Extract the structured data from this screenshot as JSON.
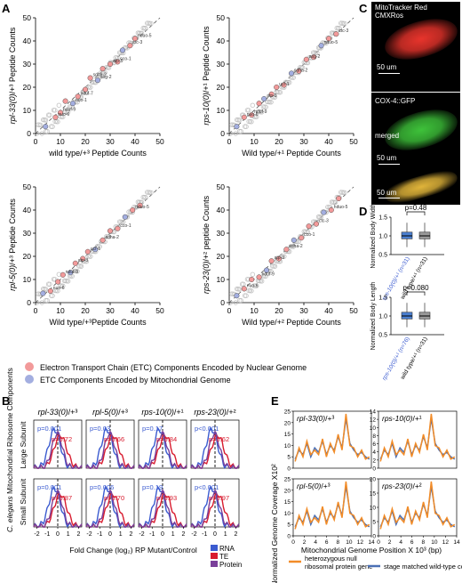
{
  "panelA": {
    "letter": "A",
    "plots": [
      {
        "ylabel_it": "rpl-33(0)",
        "ylabel_sup": "/+³",
        "ylabel_rest": " Peptide Counts",
        "xlabel": "wild type/+³ Peptide Counts",
        "points": [
          [
            4,
            3
          ],
          [
            8,
            7
          ],
          [
            10,
            9
          ],
          [
            12,
            14
          ],
          [
            15,
            13
          ],
          [
            17,
            16
          ],
          [
            20,
            19
          ],
          [
            22,
            24
          ],
          [
            25,
            23
          ],
          [
            27,
            28
          ],
          [
            30,
            30
          ],
          [
            33,
            31
          ],
          [
            35,
            36
          ],
          [
            38,
            38
          ],
          [
            40,
            41
          ]
        ],
        "labels": [
          "nuo-6",
          "nduf-9",
          "nuo-1",
          "nduf-7",
          "sdha-2",
          "asg-2",
          "atp-5",
          "cco-1",
          "ctc-3",
          "nduo-5"
        ]
      },
      {
        "ylabel_it": "rps-10(0)",
        "ylabel_sup": "/+¹",
        "ylabel_rest": " Peptide Counts",
        "xlabel": "Wild type/+¹ Peptide Counts",
        "points": [
          [
            3,
            3
          ],
          [
            6,
            7
          ],
          [
            9,
            8
          ],
          [
            12,
            13
          ],
          [
            14,
            15
          ],
          [
            17,
            17
          ],
          [
            19,
            20
          ],
          [
            22,
            21
          ],
          [
            25,
            26
          ],
          [
            28,
            27
          ],
          [
            31,
            32
          ],
          [
            34,
            33
          ],
          [
            37,
            38
          ],
          [
            40,
            41
          ],
          [
            43,
            43
          ]
        ],
        "labels": [
          "nuo-6",
          "nduf-9",
          "atp-3",
          "ucr-1",
          "sdha-2",
          "asg-2",
          "nduo-5",
          "ctc-3"
        ]
      },
      {
        "ylabel_it": "rpl-5(0)",
        "ylabel_sup": "/+³",
        "ylabel_rest": " Peptide Counts",
        "xlabel": "Wild type/+³Peptide Counts",
        "points": [
          [
            3,
            4
          ],
          [
            6,
            5
          ],
          [
            9,
            9
          ],
          [
            11,
            12
          ],
          [
            14,
            13
          ],
          [
            16,
            17
          ],
          [
            19,
            19
          ],
          [
            21,
            22
          ],
          [
            24,
            23
          ],
          [
            27,
            27
          ],
          [
            30,
            31
          ],
          [
            33,
            32
          ],
          [
            36,
            37
          ],
          [
            39,
            40
          ],
          [
            42,
            42
          ]
        ],
        "labels": [
          "nuo-6",
          "nduf-9",
          "atp-3",
          "ucr-1",
          "sdha-2",
          "cco-1",
          "nduo-5"
        ]
      },
      {
        "ylabel_it": "rps-23(0)",
        "ylabel_sup": "/+²",
        "ylabel_rest": " peptide Counts",
        "xlabel": "Wild type/+² Peptide Counts",
        "points": [
          [
            3,
            3
          ],
          [
            6,
            6
          ],
          [
            9,
            10
          ],
          [
            12,
            11
          ],
          [
            15,
            14
          ],
          [
            17,
            18
          ],
          [
            20,
            19
          ],
          [
            23,
            23
          ],
          [
            26,
            27
          ],
          [
            29,
            28
          ],
          [
            32,
            33
          ],
          [
            35,
            34
          ],
          [
            38,
            39
          ],
          [
            41,
            40
          ],
          [
            44,
            45
          ]
        ],
        "labels": [
          "nuo-6",
          "nduf-9",
          "atp-3",
          "sdha-2",
          "cco-1",
          "ctc-3",
          "nduo-5"
        ]
      }
    ],
    "ticks": [
      "0",
      "10",
      "20",
      "30",
      "40",
      "50"
    ],
    "legend": [
      {
        "text": "Electron Transport Chain (ETC) Components Encoded by Nuclear Genome",
        "color": "#f29a9a"
      },
      {
        "text": "ETC Components Encoded by Mitochondrial Genome",
        "color": "#a3aee0"
      }
    ]
  },
  "panelB": {
    "letter": "B",
    "ylabel_it": "C. elegans",
    "ylabel_rest": " Mitochondrial Ribosome Components",
    "row_labels": [
      "Large Subunit",
      "Small Subunit"
    ],
    "titles": [
      {
        "it": "rpl-33(0)",
        "sup": "/+³"
      },
      {
        "it": "rpl-5(0)",
        "sup": "/+³"
      },
      {
        "it": "rps-10(0)",
        "sup": "/+¹"
      },
      {
        "it": "rps-23(0)",
        "sup": "/+²"
      }
    ],
    "pvals_large": [
      [
        "p=0.001",
        "p=0.72"
      ],
      [
        "p=0.03",
        "p=0.66"
      ],
      [
        "p=0.17",
        "p=0.84"
      ],
      [
        "p<0.001",
        "p=0.62"
      ]
    ],
    "pvals_small": [
      [
        "p=0.001",
        "p=0.87"
      ],
      [
        "p=0.006",
        "p=0.70"
      ],
      [
        "p=0.19",
        "p=0.93"
      ],
      [
        "p<0.001",
        "p=0.97"
      ]
    ],
    "xticks": [
      "-2",
      "-1",
      "0",
      "1",
      "2"
    ],
    "xlabel": "Fold Change (log₂) RP Mutant/Control",
    "legend": [
      {
        "text": "RNA",
        "color": "#3b5bd0"
      },
      {
        "text": "TE",
        "color": "#d81b2e"
      },
      {
        "text": "Protein",
        "color": "#7a3f9a"
      }
    ]
  },
  "panelC": {
    "letter": "C",
    "images": [
      {
        "label": "MitoTracker Red\nCMXRos",
        "scale": "50 um",
        "color": "#e8342c"
      },
      {
        "label": "COX-4::GFP",
        "scale": "50 um",
        "color": "#3ec23a"
      },
      {
        "label": "merged",
        "scale": "50 um",
        "color": "#e0b43a"
      }
    ]
  },
  "panelD": {
    "letter": "D",
    "plots": [
      {
        "ylabel": "Normalized Body Width",
        "pval": "p=0.48",
        "ticks": [
          "0.5",
          "1.0",
          "1.5"
        ],
        "groups": [
          {
            "it": "rps-10(0)/+¹",
            "n": " (n=31)",
            "color": "#4a7fd0"
          },
          {
            "it": "",
            "label": "wild type/+¹",
            "n": " (n=31)",
            "color": "#999999"
          }
        ]
      },
      {
        "ylabel": "Normalized Body Length",
        "pval": "p=0.080",
        "ticks": [
          "0.5",
          "1.0",
          "1.5"
        ],
        "groups": [
          {
            "it": "rps-10(0)/+¹",
            "n": " (n=76)",
            "color": "#4a7fd0"
          },
          {
            "it": "",
            "label": "wild type/+¹",
            "n": " (n=31)",
            "color": "#999999"
          }
        ]
      }
    ]
  },
  "panelE": {
    "letter": "E",
    "titles": [
      {
        "it": "rpl-33(0)",
        "sup": "/+³"
      },
      {
        "it": "rps-10(0)",
        "sup": "/+¹"
      },
      {
        "it": "rpl-5(0)",
        "sup": "/+³"
      },
      {
        "it": "rps-23(0)",
        "sup": "/+²"
      }
    ],
    "ylabel": "Normalized Genome Coverage X10²",
    "xlabel": "Mitochondrial Genome Position X 10³ (bp)",
    "xticks": [
      "0",
      "2",
      "4",
      "6",
      "8",
      "10",
      "12",
      "14"
    ],
    "yticks_top_left": [
      "0",
      "5",
      "10",
      "15",
      "20",
      "25"
    ],
    "yticks_top_right": [
      "0",
      "2",
      "4",
      "6",
      "8",
      "10",
      "12",
      "14"
    ],
    "yticks_bot_left": [
      "0",
      "5",
      "10",
      "15",
      "20",
      "25"
    ],
    "yticks_bot_right": [
      "0",
      "5",
      "10",
      "15",
      "20"
    ],
    "legend": [
      {
        "text": "heterozygous null\nribosomal protein gene",
        "color": "#f28c28"
      },
      {
        "text": "stage matched wild-type control",
        "color": "#4a6fb5"
      }
    ],
    "coverage_control": [
      4,
      8,
      6,
      11,
      5,
      9,
      7,
      12,
      6,
      10,
      8,
      14,
      9,
      22,
      11,
      8,
      6,
      7,
      5,
      4
    ],
    "coverage_mutant": [
      3,
      9,
      5,
      12,
      6,
      8,
      6,
      13,
      5,
      11,
      7,
      15,
      8,
      24,
      10,
      9,
      5,
      8,
      4,
      5
    ]
  }
}
